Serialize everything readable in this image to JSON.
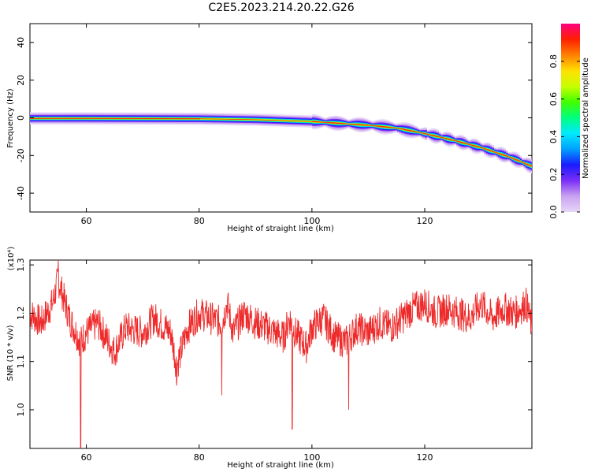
{
  "title": "C2E5.2023.214.20.22.G26",
  "chart_data": [
    {
      "type": "heatmap",
      "title": "C2E5.2023.214.20.22.G26",
      "xlabel": "Height of straight line (km)",
      "ylabel": "Frequency (Hz)",
      "xlim": [
        50,
        139
      ],
      "ylim": [
        -50,
        50
      ],
      "x_ticks": [
        60,
        80,
        100,
        120
      ],
      "y_ticks": [
        40,
        20,
        0,
        -20,
        -40
      ],
      "colorbar": {
        "label": "Normalized spectral amplitude",
        "range": [
          0.0,
          1.0
        ],
        "ticks": [
          0.0,
          0.2,
          0.4,
          0.6,
          0.8
        ],
        "colors": [
          "#e6d6f7",
          "#c9a3f0",
          "#7b2ff7",
          "#1a1aff",
          "#00a0ff",
          "#00eaff",
          "#00ff80",
          "#40ff00",
          "#c8ff00",
          "#ffe000",
          "#ff8000",
          "#ff2000",
          "#ff0080"
        ]
      },
      "ridge": [
        {
          "x": 50,
          "f": -0.3
        },
        {
          "x": 60,
          "f": -0.3
        },
        {
          "x": 70,
          "f": -0.4
        },
        {
          "x": 80,
          "f": -0.5
        },
        {
          "x": 90,
          "f": -1.0
        },
        {
          "x": 95,
          "f": -1.5
        },
        {
          "x": 100,
          "f": -2.0
        },
        {
          "x": 105,
          "f": -3.0
        },
        {
          "x": 110,
          "f": -4.0
        },
        {
          "x": 115,
          "f": -5.5
        },
        {
          "x": 120,
          "f": -8.5
        },
        {
          "x": 125,
          "f": -12.0
        },
        {
          "x": 130,
          "f": -16.0
        },
        {
          "x": 135,
          "f": -21.0
        },
        {
          "x": 139,
          "f": -26.0
        }
      ]
    },
    {
      "type": "line",
      "xlabel": "Height of straight line (km)",
      "ylabel": "SNR (10 * v/v)",
      "y_multiplier_label": "(x10⁴)",
      "xlim": [
        50,
        139
      ],
      "ylim": [
        0.92,
        1.31
      ],
      "x_ticks": [
        60,
        80,
        100,
        120
      ],
      "y_ticks": [
        1.0,
        1.1,
        1.2,
        1.3
      ],
      "y_tick_labels": [
        "1.0",
        "1.1",
        "1.2",
        "1.3"
      ],
      "color": "#ee2a2a",
      "series": [
        {
          "values_x": [
            50,
            52,
            54,
            55,
            57,
            59,
            60,
            62,
            64,
            65,
            67,
            70,
            72,
            75,
            76,
            78,
            80,
            82,
            84,
            85,
            86,
            88,
            90,
            92,
            95,
            96,
            97,
            99,
            100,
            102,
            104,
            106,
            108,
            110,
            112,
            114,
            116,
            118,
            120,
            122,
            124,
            126,
            128,
            130,
            132,
            134,
            136,
            138,
            139
          ],
          "values_y": [
            1.2,
            1.18,
            1.22,
            1.27,
            1.19,
            1.14,
            1.16,
            1.18,
            1.14,
            1.12,
            1.17,
            1.16,
            1.19,
            1.16,
            1.09,
            1.17,
            1.2,
            1.19,
            1.18,
            1.22,
            1.16,
            1.2,
            1.18,
            1.17,
            1.15,
            1.19,
            1.16,
            1.13,
            1.17,
            1.19,
            1.15,
            1.14,
            1.17,
            1.16,
            1.18,
            1.17,
            1.19,
            1.21,
            1.22,
            1.2,
            1.21,
            1.2,
            1.19,
            1.22,
            1.19,
            1.21,
            1.2,
            1.22,
            1.17
          ],
          "dips": [
            {
              "x": 59.0,
              "y": 0.92
            },
            {
              "x": 76.0,
              "y": 1.05
            },
            {
              "x": 84.0,
              "y": 1.03
            },
            {
              "x": 96.5,
              "y": 0.96
            },
            {
              "x": 106.5,
              "y": 1.0
            },
            {
              "x": 55.0,
              "y": 1.31
            }
          ]
        }
      ]
    }
  ]
}
